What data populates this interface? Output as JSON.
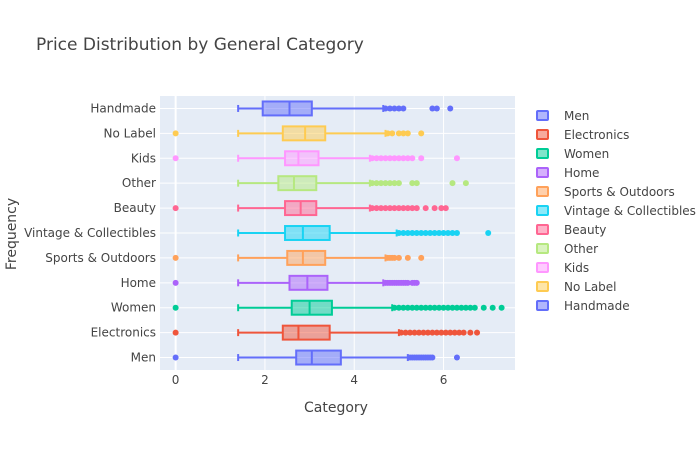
{
  "chart_data": {
    "type": "box",
    "orientation": "horizontal",
    "title": "Price Distribution by General Category",
    "xlabel": "Category",
    "ylabel": "Frequency",
    "xlim": [
      -0.35,
      7.6
    ],
    "xticks": [
      0,
      2,
      4,
      6
    ],
    "grid": true,
    "legend_position": "right",
    "series": [
      {
        "name": "Men",
        "color": "#636efa",
        "min": 1.4,
        "q1": 2.7,
        "median": 3.05,
        "q3": 3.7,
        "max": 5.2,
        "outliers": [
          0,
          5.25,
          5.3,
          5.35,
          5.4,
          5.45,
          5.5,
          5.55,
          5.6,
          5.65,
          5.7,
          5.75,
          6.3
        ]
      },
      {
        "name": "Electronics",
        "color": "#ef553b",
        "min": 1.4,
        "q1": 2.4,
        "median": 2.75,
        "q3": 3.45,
        "max": 5.0,
        "outliers": [
          0,
          5.05,
          5.15,
          5.25,
          5.35,
          5.45,
          5.55,
          5.65,
          5.75,
          5.85,
          5.95,
          6.05,
          6.15,
          6.25,
          6.35,
          6.45,
          6.6,
          6.75
        ]
      },
      {
        "name": "Women",
        "color": "#00cc96",
        "min": 1.4,
        "q1": 2.6,
        "median": 3.0,
        "q3": 3.5,
        "max": 4.85,
        "outliers": [
          0,
          4.9,
          5.0,
          5.1,
          5.2,
          5.3,
          5.4,
          5.5,
          5.6,
          5.7,
          5.8,
          5.9,
          6.0,
          6.1,
          6.2,
          6.3,
          6.4,
          6.5,
          6.6,
          6.7,
          6.9,
          7.1,
          7.3
        ]
      },
      {
        "name": "Home",
        "color": "#ab63fa",
        "min": 1.4,
        "q1": 2.55,
        "median": 2.95,
        "q3": 3.4,
        "max": 4.65,
        "outliers": [
          0,
          4.7,
          4.75,
          4.8,
          4.85,
          4.9,
          4.95,
          5.0,
          5.05,
          5.1,
          5.15,
          5.2,
          5.3,
          5.35,
          5.4
        ]
      },
      {
        "name": "Sports & Outdoors",
        "color": "#ffa15a",
        "min": 1.4,
        "q1": 2.5,
        "median": 2.85,
        "q3": 3.35,
        "max": 4.7,
        "outliers": [
          0,
          4.75,
          4.8,
          4.85,
          4.9,
          5.0,
          5.2,
          5.5
        ]
      },
      {
        "name": "Vintage & Collectibles",
        "color": "#19d3f3",
        "min": 1.4,
        "q1": 2.45,
        "median": 2.85,
        "q3": 3.45,
        "max": 4.95,
        "outliers": [
          5.0,
          5.1,
          5.2,
          5.3,
          5.4,
          5.5,
          5.6,
          5.7,
          5.8,
          5.9,
          6.0,
          6.1,
          6.2,
          6.3,
          7.0
        ]
      },
      {
        "name": "Beauty",
        "color": "#ff6692",
        "min": 1.4,
        "q1": 2.45,
        "median": 2.8,
        "q3": 3.15,
        "max": 4.35,
        "outliers": [
          0,
          4.4,
          4.5,
          4.6,
          4.7,
          4.8,
          4.9,
          5.0,
          5.1,
          5.2,
          5.3,
          5.4,
          5.6,
          5.8,
          5.95,
          6.05
        ]
      },
      {
        "name": "Other",
        "color": "#b6e880",
        "min": 1.4,
        "q1": 2.3,
        "median": 2.65,
        "q3": 3.15,
        "max": 4.35,
        "outliers": [
          4.4,
          4.5,
          4.6,
          4.7,
          4.8,
          4.9,
          5.0,
          5.3,
          5.4,
          6.2,
          6.5
        ]
      },
      {
        "name": "Kids",
        "color": "#ff97ff",
        "min": 1.4,
        "q1": 2.45,
        "median": 2.75,
        "q3": 3.2,
        "max": 4.35,
        "outliers": [
          0,
          4.4,
          4.5,
          4.6,
          4.7,
          4.8,
          4.9,
          5.0,
          5.1,
          5.2,
          5.3,
          5.5,
          6.3
        ]
      },
      {
        "name": "No Label",
        "color": "#fecb52",
        "min": 1.4,
        "q1": 2.4,
        "median": 2.9,
        "q3": 3.35,
        "max": 4.7,
        "outliers": [
          0,
          4.75,
          4.85,
          5.0,
          5.1,
          5.2,
          5.5
        ]
      },
      {
        "name": "Handmade",
        "color": "#636efa",
        "min": 1.4,
        "q1": 1.95,
        "median": 2.55,
        "q3": 3.05,
        "max": 4.65,
        "outliers": [
          4.7,
          4.8,
          4.9,
          5.0,
          5.1,
          5.75,
          5.85,
          6.15
        ]
      }
    ]
  }
}
